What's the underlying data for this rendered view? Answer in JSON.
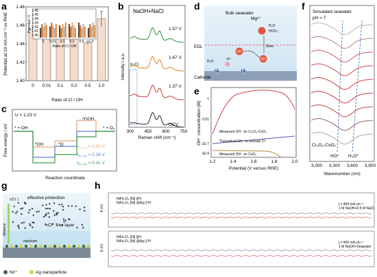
{
  "panels": {
    "a": {
      "label": "a"
    },
    "b": {
      "label": "b"
    },
    "c": {
      "label": "c"
    },
    "d": {
      "label": "d"
    },
    "e": {
      "label": "e"
    },
    "f": {
      "label": "f"
    },
    "g": {
      "label": "g"
    },
    "h": {
      "label": "h"
    }
  },
  "chart_data": [
    {
      "panel": "a",
      "type": "bar",
      "ylabel": "Potential at 10 mA cm⁻² vs RHE",
      "xlabel": "Ratio of Cl / OH",
      "categories": [
        "0",
        "0.01",
        "0.1",
        "0.2",
        "0.5",
        "1.0"
      ],
      "values": [
        1.456,
        1.455,
        1.448,
        1.447,
        1.441,
        1.467
      ],
      "errors": [
        0.002,
        0.004,
        0.001,
        0.001,
        0.002,
        0.008
      ],
      "ylim": [
        1.4,
        1.48
      ],
      "yticks": [
        "1.40",
        "1.42",
        "1.44",
        "1.46",
        "1.48"
      ],
      "inset": {
        "ylabel": "Potential / V",
        "xlabel": "Ratio of Cl / OH",
        "yticks": [
          "1.46",
          "1.45",
          "1.44",
          "1.43",
          "1.42",
          "1.41",
          "1.40"
        ],
        "categories": [
          "0",
          "0.01",
          "0.1",
          "0.2",
          "0.5",
          "1.0"
        ]
      }
    },
    {
      "panel": "b",
      "type": "line",
      "title": "NaOH+NaCl",
      "xlabel": "Raman shift (cm⁻¹)",
      "ylabel": "Intensity / a.u.",
      "xticks": [
        "300",
        "450",
        "600",
        "750"
      ],
      "xlim": [
        300,
        750
      ],
      "peak_label": "Ir-Cl",
      "series": [
        {
          "name": "1.57 V",
          "color": "#2e8b3a"
        },
        {
          "name": "1.47 V",
          "color": "#e07b20"
        },
        {
          "name": "1.37 V",
          "color": "#c0392b"
        },
        {
          "name": "OCV",
          "color": "#222222"
        }
      ]
    },
    {
      "panel": "c",
      "type": "line",
      "title": "U = 1.23 V",
      "xlabel": "Reaction coordinate",
      "ylabel": "Free energy / eV",
      "states": [
        "* + OH",
        "*OH",
        "*O",
        "*OOH",
        "* + O₂"
      ],
      "series": [
        {
          "name": "η",
          "sub": "Cl-OH",
          "value": "= 0.50 V",
          "color": "#e8a87c"
        },
        {
          "name": "η",
          "sub": "Cl-OH",
          "value": "= 0.28 V",
          "color": "#5b7fcf"
        },
        {
          "name": "η",
          "sub": "Cl-OH",
          "value": "= 0.41 V",
          "color": "#3c9a4a"
        }
      ]
    },
    {
      "panel": "e",
      "type": "line",
      "xlabel": "Potential (V versus RHE)",
      "ylabel": "OH⁻ concentration (M)",
      "xticks": [
        "1.2",
        "1.4",
        "1.6",
        "1.8",
        "2.0"
      ],
      "yticks": [
        "1",
        "0.01",
        "1E-7",
        "1E-9"
      ],
      "annotations": [
        "Measured OH⁻ on Cr₂O₃-CoOₓ",
        "Theoretical OH⁻ to exclude Cl⁻",
        "Measured OH⁻ on CoOₓ"
      ]
    },
    {
      "panel": "f",
      "type": "line",
      "title": "Simulated seawater",
      "subtitle": "pH = 7",
      "xlabel": "Wavenumber (nm)",
      "xticks": [
        "3,000",
        "3,300",
        "3,600",
        "3,900"
      ],
      "annotations": [
        "Cr₂O₃-CoOₓ",
        "HO*",
        "H₂O*"
      ]
    },
    {
      "panel": "h",
      "type": "line",
      "top": {
        "legend": [
          "NiFe₂O₄ [Ni] ||Pt",
          "NiFe₂O₄ [Ni] @Ag || Pt"
        ],
        "note1": "j = 400 mA cm⁻²",
        "note2": "1 M NaOH+0.5 M NaCl",
        "ylabel": "E (V)"
      },
      "bottom": {
        "legend": [
          "NiFe₂O₄ [Ni] ||Pt",
          "NiFe₂O₄ [Ni] @Ag || Pt"
        ],
        "note1": "j = 400 mA cm⁻²",
        "note2": "1 M NaOH+Seawater",
        "ylabel": "E (V)"
      }
    }
  ],
  "d": {
    "bulk": "Bulk seawater",
    "mg": "Mg²⁺",
    "h2o": "H₂O",
    "hco3": "HCO₃⁻",
    "edl": "EDL",
    "oh1": "OH⁻",
    "oh2": "OH",
    "slow": "Slow",
    "h2o2": "H₂O",
    "hplus": "H⁺",
    "la1": "LA",
    "la2": "LA",
    "cathode": "Cathode"
  },
  "g": {
    "title": "effective protection",
    "axis": "c(Cl⁻)",
    "distance": "distance",
    "free": "Cl⁻ free layer",
    "repulsion": "repulsion",
    "legend_ni": "Ni²⁺",
    "legend_ag": "Ag nanoparticle"
  }
}
